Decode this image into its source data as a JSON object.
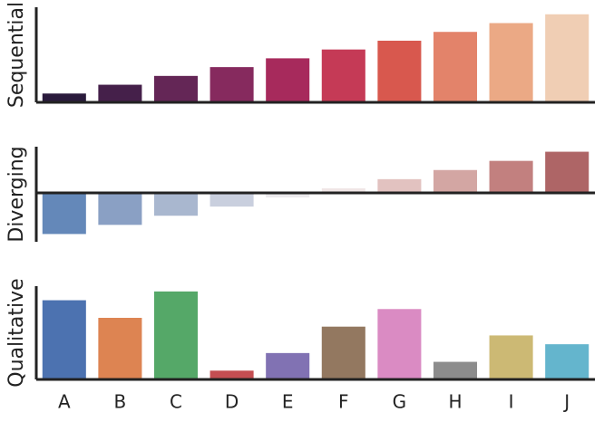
{
  "chart_data": [
    {
      "type": "bar",
      "ylabel": "Sequential",
      "ylim": [
        0,
        10.8
      ],
      "values": [
        1,
        2,
        3,
        4,
        5,
        6,
        7,
        8,
        9,
        10
      ],
      "colors": [
        "#2a1a3c",
        "#45204a",
        "#642656",
        "#862a5e",
        "#a72a5c",
        "#c53a56",
        "#d8584e",
        "#e3836a",
        "#eba985",
        "#f0ceb4"
      ]
    },
    {
      "type": "bar",
      "ylabel": "Diverging",
      "ylim": [
        -5.35,
        5.05
      ],
      "values": [
        -4.5,
        -3.5,
        -2.5,
        -1.5,
        -0.5,
        0.5,
        1.5,
        2.5,
        3.5,
        4.5
      ],
      "colors": [
        "#6488b9",
        "#8aa0c4",
        "#a9b7cf",
        "#c9cfde",
        "#ebe9ec",
        "#f0e6e6",
        "#e2c2c0",
        "#d3a6a3",
        "#c2807f",
        "#ae6566"
      ]
    },
    {
      "type": "bar",
      "ylabel": "Qualitative",
      "ylim": [
        0,
        10.6
      ],
      "categories": [
        "A",
        "B",
        "C",
        "D",
        "E",
        "F",
        "G",
        "H",
        "I",
        "J"
      ],
      "values": [
        9,
        7,
        10,
        1,
        3,
        6,
        8,
        2,
        5,
        4
      ],
      "colors": [
        "#4c72b0",
        "#dd8452",
        "#55a868",
        "#c44e52",
        "#8172b3",
        "#937860",
        "#da8bc3",
        "#8c8c8c",
        "#ccb974",
        "#64b5cd"
      ]
    }
  ]
}
